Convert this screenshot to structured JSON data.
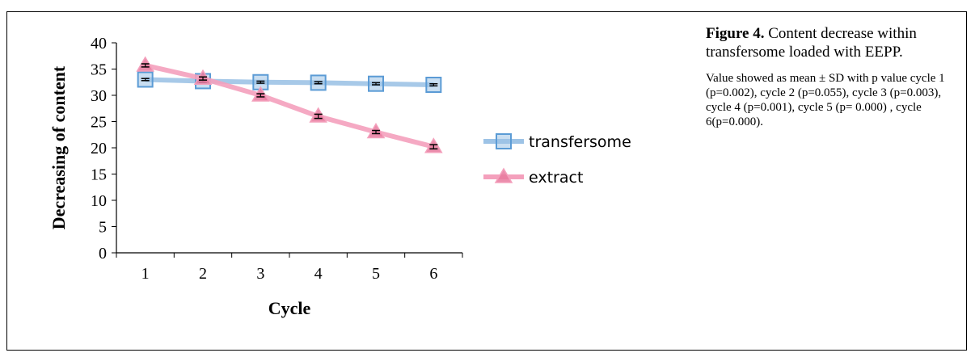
{
  "colors": {
    "transfersome": "#9DC3E6",
    "transfersome_marker_stroke": "#5B9BD5",
    "extract": "#F4A0BC",
    "extract_marker_fill": "#E8799E",
    "axis": "#000000",
    "errorbar": "#000000"
  },
  "chart_data": {
    "type": "line",
    "x": [
      1,
      2,
      3,
      4,
      5,
      6
    ],
    "xlabel": "Cycle",
    "ylabel": "Decreasing of content",
    "ylim": [
      0,
      40
    ],
    "yticks": [
      0,
      5,
      10,
      15,
      20,
      25,
      30,
      35,
      40
    ],
    "grid": false,
    "legend": "right",
    "series": [
      {
        "name": "transfersome",
        "marker": "square",
        "values": [
          33.0,
          32.7,
          32.5,
          32.4,
          32.2,
          32.0
        ],
        "error": [
          0.2,
          0.2,
          0.2,
          0.2,
          0.2,
          0.2
        ]
      },
      {
        "name": "extract",
        "marker": "triangle",
        "values": [
          35.7,
          33.2,
          30.0,
          26.0,
          23.0,
          20.2
        ],
        "error": [
          0.3,
          0.3,
          0.3,
          0.4,
          0.3,
          0.4
        ]
      }
    ]
  },
  "caption": {
    "label": "Figure 4.",
    "text": "Content decrease within transfersome loaded with EEPP.",
    "note": "Value showed as mean ± SD with p value cycle 1 (p=0.002), cycle 2 (p=0.055), cycle 3 (p=0.003), cycle 4  (p=0.001), cycle 5 (p= 0.000) , cycle 6(p=0.000)."
  }
}
